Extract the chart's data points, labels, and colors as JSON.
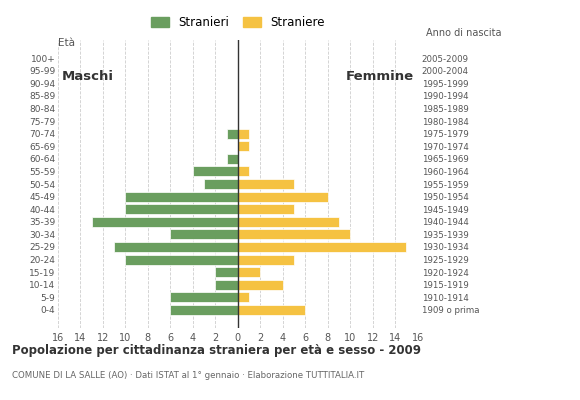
{
  "age_groups": [
    "100+",
    "95-99",
    "90-94",
    "85-89",
    "80-84",
    "75-79",
    "70-74",
    "65-69",
    "60-64",
    "55-59",
    "50-54",
    "45-49",
    "40-44",
    "35-39",
    "30-34",
    "25-29",
    "20-24",
    "15-19",
    "10-14",
    "5-9",
    "0-4"
  ],
  "birth_years": [
    "1909 o prima",
    "1910-1914",
    "1915-1919",
    "1920-1924",
    "1925-1929",
    "1930-1934",
    "1935-1939",
    "1940-1944",
    "1945-1949",
    "1950-1954",
    "1955-1959",
    "1960-1964",
    "1965-1969",
    "1970-1974",
    "1975-1979",
    "1980-1984",
    "1985-1989",
    "1990-1994",
    "1995-1999",
    "2000-2004",
    "2005-2009"
  ],
  "males": [
    0,
    0,
    0,
    0,
    0,
    0,
    1,
    0,
    1,
    4,
    3,
    10,
    10,
    13,
    6,
    11,
    10,
    2,
    2,
    6,
    6
  ],
  "females": [
    0,
    0,
    0,
    0,
    0,
    0,
    1,
    1,
    0,
    1,
    5,
    8,
    5,
    9,
    10,
    15,
    5,
    2,
    4,
    1,
    6
  ],
  "male_color": "#6a9e5f",
  "female_color": "#f5c242",
  "grid_color": "#c8c8c8",
  "bar_edge_color": "#ffffff",
  "title": "Popolazione per cittadinanza straniera per età e sesso - 2009",
  "subtitle": "COMUNE DI LA SALLE (AO) · Dati ISTAT al 1° gennaio · Elaborazione TUTTITALIA.IT",
  "legend_stranieri": "Stranieri",
  "legend_straniere": "Straniere",
  "xlabel_eta": "Età",
  "xlabel_anno": "Anno di nascita",
  "label_maschi": "Maschi",
  "label_femmine": "Femmine",
  "xlim": 16,
  "background_color": "#ffffff"
}
